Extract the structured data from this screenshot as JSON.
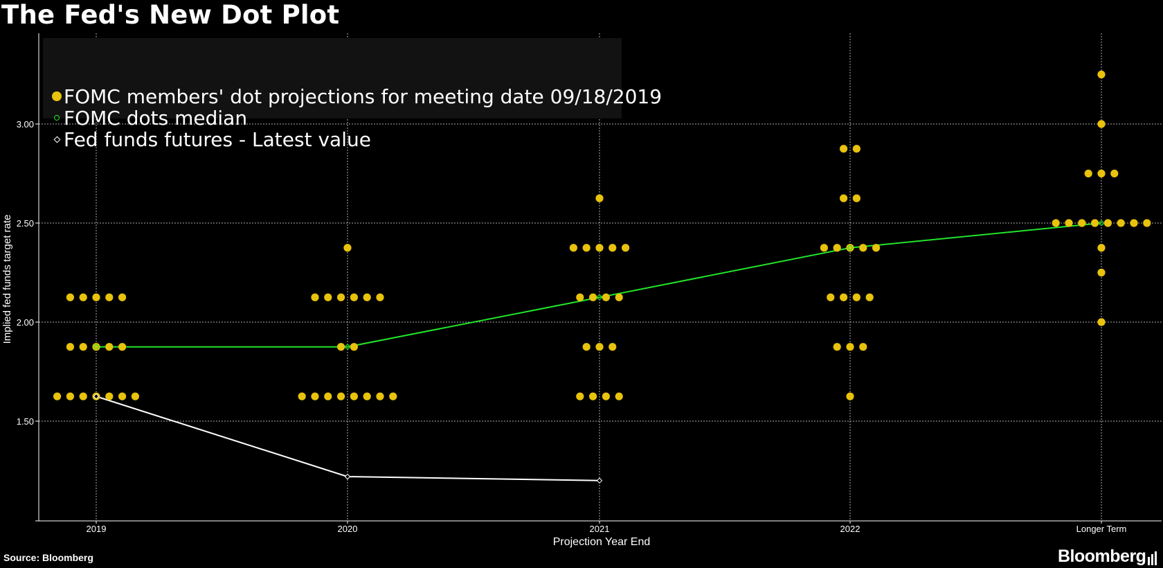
{
  "title": "The Fed's New Dot Plot",
  "source": "Source: Bloomberg",
  "brand": "Bloomberg",
  "colors": {
    "background": "#000000",
    "dot": "#e8c20c",
    "median": "#22e52a",
    "futures": "#ffffff",
    "grid": "#cfcfcf",
    "legend_bg": "#121212"
  },
  "legend": {
    "items": [
      {
        "label": "FOMC members' dot projections for meeting date 09/18/2019",
        "marker": "dot"
      },
      {
        "label": "FOMC dots median",
        "marker": "ring"
      },
      {
        "label": "Fed funds futures - Latest value",
        "marker": "diamond"
      }
    ]
  },
  "chart_data": {
    "type": "scatter",
    "title": "The Fed's New Dot Plot",
    "xlabel": "Projection Year End",
    "ylabel": "Implied fed funds target rate",
    "categories": [
      "2019",
      "2020",
      "2021",
      "2022",
      "Longer Term"
    ],
    "ylim": [
      1.0,
      3.5
    ],
    "yticks": [
      "1.50",
      "2.00",
      "2.50",
      "3.00"
    ],
    "grid": true,
    "legend_position": "top-left",
    "dots": [
      {
        "category": "2019",
        "levels": [
          {
            "value": 2.125,
            "count": 5
          },
          {
            "value": 1.875,
            "count": 5
          },
          {
            "value": 1.625,
            "count": 7
          }
        ]
      },
      {
        "category": "2020",
        "levels": [
          {
            "value": 2.375,
            "count": 1
          },
          {
            "value": 2.125,
            "count": 6
          },
          {
            "value": 1.875,
            "count": 2
          },
          {
            "value": 1.625,
            "count": 8
          }
        ]
      },
      {
        "category": "2021",
        "levels": [
          {
            "value": 2.625,
            "count": 1
          },
          {
            "value": 2.375,
            "count": 5
          },
          {
            "value": 2.125,
            "count": 4
          },
          {
            "value": 1.875,
            "count": 3
          },
          {
            "value": 1.625,
            "count": 4
          }
        ]
      },
      {
        "category": "2022",
        "levels": [
          {
            "value": 2.875,
            "count": 2
          },
          {
            "value": 2.625,
            "count": 2
          },
          {
            "value": 2.375,
            "count": 5
          },
          {
            "value": 2.125,
            "count": 4
          },
          {
            "value": 1.875,
            "count": 3
          },
          {
            "value": 1.625,
            "count": 1
          }
        ]
      },
      {
        "category": "Longer Term",
        "levels": [
          {
            "value": 3.25,
            "count": 1
          },
          {
            "value": 3.0,
            "count": 1
          },
          {
            "value": 2.75,
            "count": 3
          },
          {
            "value": 2.5,
            "count": 8
          },
          {
            "value": 2.375,
            "count": 1
          },
          {
            "value": 2.25,
            "count": 1
          },
          {
            "value": 2.0,
            "count": 1
          }
        ]
      }
    ],
    "series": [
      {
        "name": "FOMC dots median",
        "categories": [
          "2019",
          "2020",
          "2021",
          "2022",
          "Longer Term"
        ],
        "values": [
          1.875,
          1.875,
          2.125,
          2.375,
          2.5
        ]
      },
      {
        "name": "Fed funds futures - Latest value",
        "categories": [
          "2019",
          "2020",
          "2021"
        ],
        "values": [
          1.625,
          1.22,
          1.2
        ]
      }
    ]
  }
}
